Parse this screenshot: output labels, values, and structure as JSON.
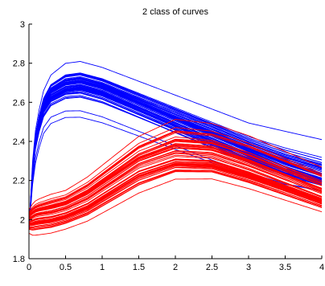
{
  "chart_data": {
    "type": "line",
    "title": "2 class of curves",
    "xlabel": "",
    "ylabel": "",
    "xlim": [
      0,
      4
    ],
    "ylim": [
      1.8,
      3.0
    ],
    "xticks": [
      "0",
      "0.5",
      "1",
      "1.5",
      "2",
      "2.5",
      "3",
      "3.5",
      "4"
    ],
    "yticks": [
      "1.8",
      "2",
      "2.2",
      "2.4",
      "2.6",
      "2.8",
      "3"
    ],
    "grid": false,
    "legend": "none",
    "series": [
      {
        "color": "#0000ff",
        "x": [
          0,
          0.05,
          0.1,
          0.2,
          0.3,
          0.5,
          0.7,
          1.0,
          1.5,
          2.0,
          2.5,
          3.0,
          3.5,
          4.0
        ],
        "y_upper": [
          1.95,
          2.3,
          2.5,
          2.66,
          2.74,
          2.8,
          2.81,
          2.78,
          2.71,
          2.64,
          2.57,
          2.5,
          2.46,
          2.42
        ],
        "y_middle": [
          1.95,
          2.25,
          2.45,
          2.58,
          2.64,
          2.68,
          2.69,
          2.66,
          2.58,
          2.5,
          2.42,
          2.34,
          2.26,
          2.2
        ],
        "y_lower": [
          1.95,
          2.18,
          2.32,
          2.44,
          2.49,
          2.52,
          2.52,
          2.49,
          2.42,
          2.35,
          2.28,
          2.22,
          2.17,
          2.14
        ],
        "count": 60
      },
      {
        "color": "#ff0000",
        "x": [
          0,
          0.05,
          0.1,
          0.3,
          0.5,
          0.8,
          1.0,
          1.5,
          2.0,
          2.5,
          3.0,
          3.5,
          4.0
        ],
        "y_upper": [
          2.05,
          2.08,
          2.1,
          2.13,
          2.15,
          2.22,
          2.28,
          2.43,
          2.52,
          2.5,
          2.44,
          2.36,
          2.28
        ],
        "y_middle": [
          2.0,
          2.01,
          2.02,
          2.03,
          2.05,
          2.1,
          2.15,
          2.27,
          2.33,
          2.32,
          2.26,
          2.19,
          2.12
        ],
        "y_lower": [
          1.93,
          1.92,
          1.92,
          1.93,
          1.95,
          1.99,
          2.03,
          2.13,
          2.2,
          2.2,
          2.15,
          2.09,
          2.03
        ],
        "count": 60
      }
    ]
  }
}
